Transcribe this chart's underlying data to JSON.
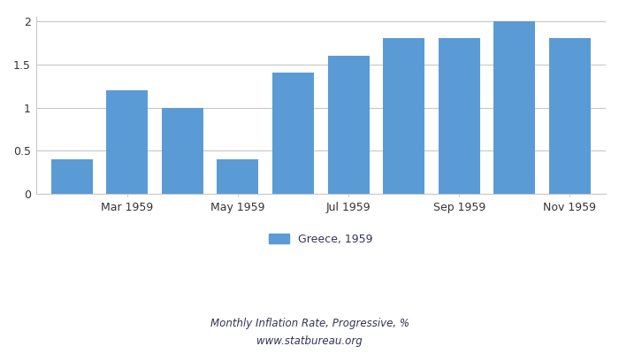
{
  "bar_values": [
    0.4,
    1.2,
    1.0,
    0.4,
    1.4,
    1.6,
    1.8,
    1.8,
    2.0,
    1.8
  ],
  "n_bars": 10,
  "bar_color": "#5b9bd5",
  "ylim": [
    0,
    2.05
  ],
  "yticks": [
    0,
    0.5,
    1.0,
    1.5,
    2.0
  ],
  "ytick_labels": [
    "0",
    "0.5",
    "1",
    "1.5",
    "2"
  ],
  "legend_label": "Greece, 1959",
  "subtitle1": "Monthly Inflation Rate, Progressive, %",
  "subtitle2": "www.statbureau.org",
  "background_color": "#ffffff",
  "grid_color": "#c8c8c8",
  "xtick_labels": [
    "Mar 1959",
    "May 1959",
    "Jul 1959",
    "Sep 1959",
    "Nov 1959"
  ],
  "xtick_positions": [
    1,
    3,
    5,
    7,
    9
  ],
  "bar_width": 0.75,
  "text_color": "#333355",
  "subtitle_fontsize": 8.5,
  "legend_fontsize": 9
}
